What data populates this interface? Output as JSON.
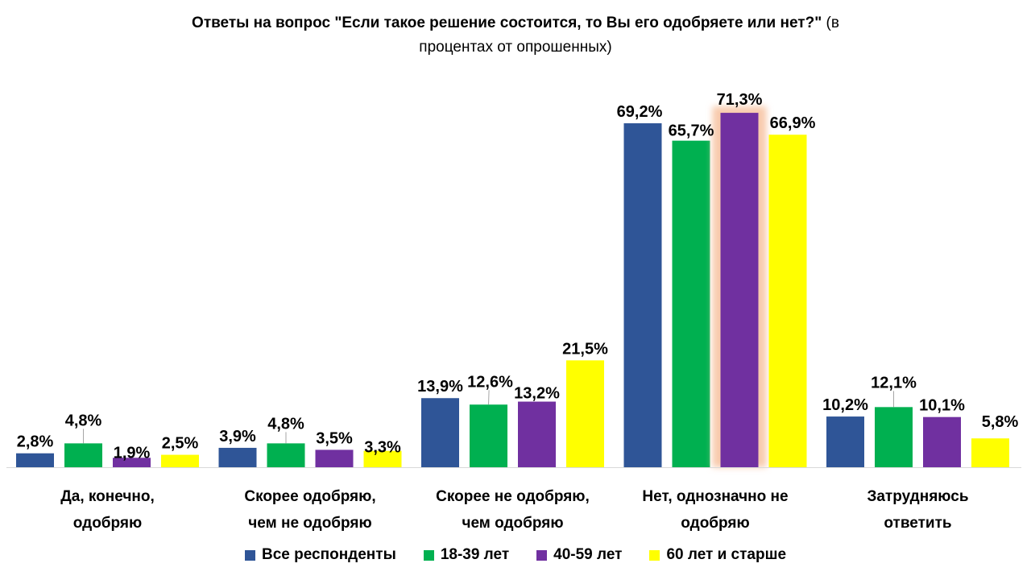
{
  "chart_data": {
    "type": "bar",
    "title_bold": "Ответы на вопрос \"Если такое решение состоится, то Вы его одобряете или нет?\"",
    "title_normal_1": "(в",
    "title_normal_2": "процентах от опрошенных)",
    "xlabel": "",
    "ylabel": "",
    "ylim": [
      0,
      75
    ],
    "grid": false,
    "legend_position": "bottom",
    "categories": [
      [
        "Да, конечно,",
        "одобряю"
      ],
      [
        "Скорее одобряю,",
        "чем не одобряю"
      ],
      [
        "Скорее не одобряю,",
        "чем одобряю"
      ],
      [
        "Нет, однозначно не",
        "одобряю"
      ],
      [
        "Затрудняюсь",
        "ответить"
      ]
    ],
    "series": [
      {
        "name": "Все респонденты",
        "color": "#2F5597",
        "values": [
          2.8,
          3.9,
          13.9,
          69.2,
          10.2
        ],
        "labels": [
          "2,8%",
          "3,9%",
          "13,9%",
          "69,2%",
          "10,2%"
        ]
      },
      {
        "name": "18-39 лет",
        "color": "#00B050",
        "values": [
          4.8,
          4.8,
          12.6,
          65.7,
          12.1
        ],
        "labels": [
          "4,8%",
          "4,8%",
          "12,6%",
          "65,7%",
          "12,1%"
        ]
      },
      {
        "name": "40-59 лет",
        "color": "#7030A0",
        "values": [
          1.9,
          3.5,
          13.2,
          71.3,
          10.1
        ],
        "labels": [
          "1,9%",
          "3,5%",
          "13,2%",
          "71,3%",
          "10,1%"
        ]
      },
      {
        "name": "60 лет и старше",
        "color": "#FFFF00",
        "values": [
          2.5,
          3.3,
          21.5,
          66.9,
          5.8
        ],
        "labels": [
          "2,5%",
          "3,3%",
          "21,5%",
          "66,9%",
          "5,8%"
        ]
      }
    ],
    "highlight": {
      "series": 2,
      "category": 3,
      "glow_color": "#F8CBAD"
    }
  }
}
